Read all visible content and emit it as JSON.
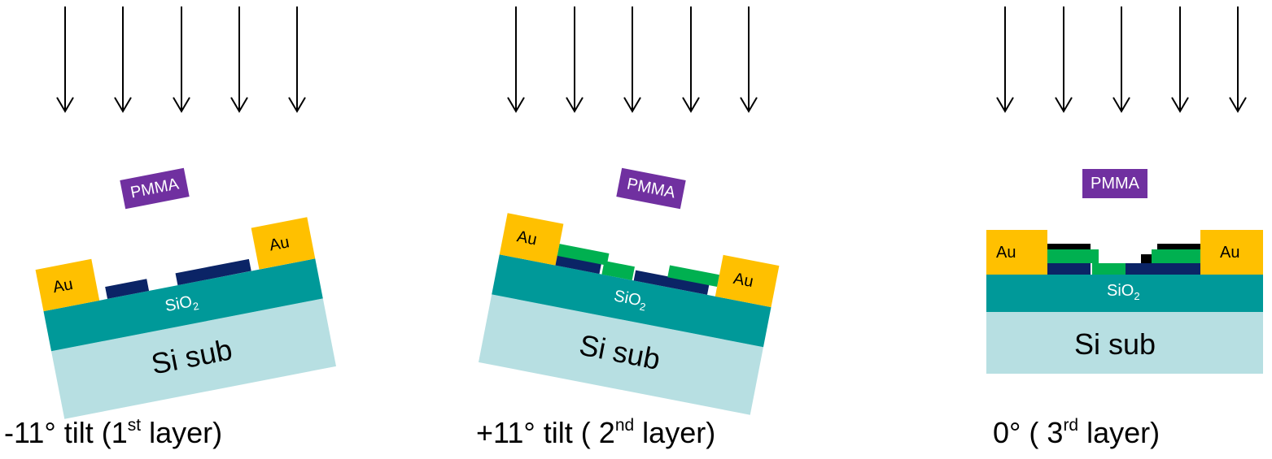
{
  "colors": {
    "si_sub": "#b7dfe2",
    "sio2": "#009999",
    "au": "#ffc000",
    "layer1": "#0b2466",
    "layer2": "#00b050",
    "layer3": "#000000",
    "pmma": "#7030a0",
    "arrow": "#000000"
  },
  "panels": [
    {
      "pmma": "PMMA",
      "au_left": "Au",
      "au_right": "Au",
      "sio2": "SiO",
      "sio2_sub": "2",
      "si": "Si sub",
      "caption": {
        "pre": "-11°  tilt  (1",
        "sup": "st",
        "post": " layer)"
      }
    },
    {
      "pmma": "PMMA",
      "au_left": "Au",
      "au_right": "Au",
      "sio2": "SiO",
      "sio2_sub": "2",
      "si": "Si sub",
      "caption": {
        "pre": "+11°  tilt ( 2",
        "sup": "nd",
        "post": " layer)"
      }
    },
    {
      "pmma": "PMMA",
      "au_left": "Au",
      "au_right": "Au",
      "sio2": "SiO",
      "sio2_sub": "2",
      "si": "Si sub",
      "caption": {
        "pre": "0°   ( 3",
        "sup": "rd",
        "post": " layer)"
      }
    }
  ]
}
